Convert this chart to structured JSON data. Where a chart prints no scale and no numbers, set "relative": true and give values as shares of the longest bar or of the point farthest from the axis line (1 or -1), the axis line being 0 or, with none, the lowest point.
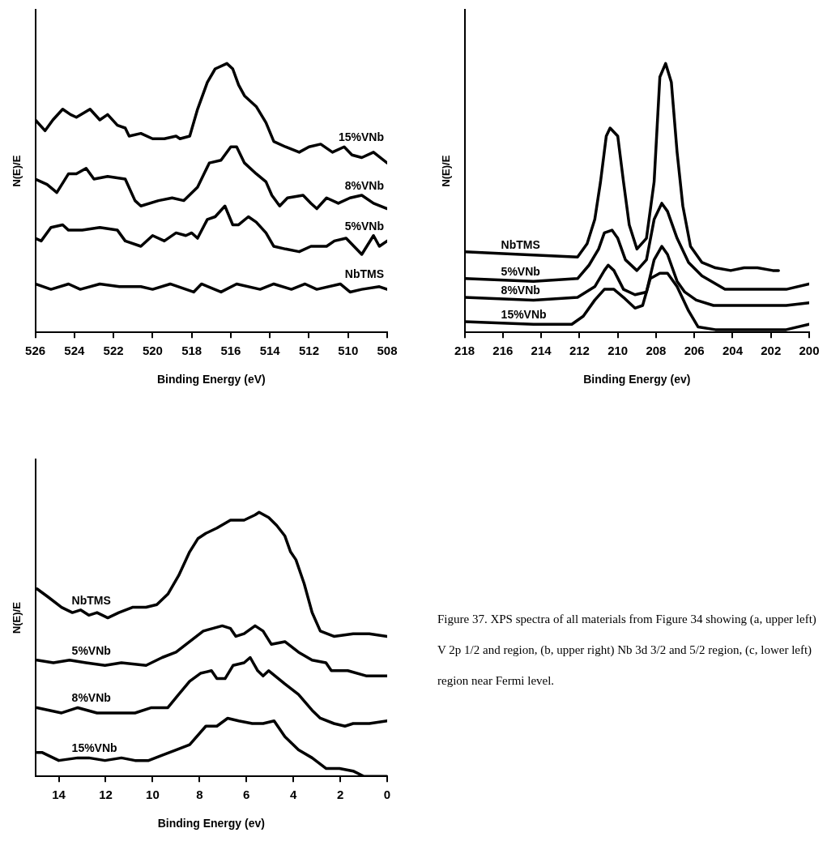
{
  "chart_data": [
    {
      "type": "line",
      "xlabel": "Binding Energy (eV)",
      "ylabel": "N(E)/E",
      "xlim": [
        526,
        508
      ],
      "xticks": [
        526,
        524,
        522,
        520,
        518,
        516,
        514,
        512,
        510,
        508
      ],
      "relative": true,
      "grid": false,
      "legend": false,
      "series": [
        {
          "name": "15%VNb",
          "color": "#000000",
          "x": [
            526.0,
            525.5,
            525.1,
            524.6,
            524.2,
            523.9,
            523.2,
            522.7,
            522.3,
            521.8,
            521.4,
            521.2,
            520.6,
            520.0,
            519.4,
            518.8,
            518.6,
            518.1,
            517.7,
            517.2,
            516.8,
            516.2,
            515.9,
            515.6,
            515.3,
            514.7,
            514.2,
            513.8,
            513.2,
            512.5,
            512.0,
            511.4,
            510.8,
            510.2,
            509.8,
            509.3,
            508.7,
            508.0
          ],
          "values": [
            0.79,
            0.75,
            0.79,
            0.83,
            0.81,
            0.8,
            0.83,
            0.79,
            0.81,
            0.77,
            0.76,
            0.73,
            0.74,
            0.72,
            0.72,
            0.73,
            0.72,
            0.73,
            0.83,
            0.93,
            0.98,
            1.0,
            0.98,
            0.92,
            0.88,
            0.84,
            0.78,
            0.71,
            0.69,
            0.67,
            0.69,
            0.7,
            0.67,
            0.69,
            0.66,
            0.65,
            0.67,
            0.63
          ]
        },
        {
          "name": "8%VNb",
          "color": "#000000",
          "x": [
            526.0,
            525.4,
            524.9,
            524.3,
            523.9,
            523.4,
            523.0,
            522.3,
            521.4,
            520.9,
            520.6,
            519.7,
            519.0,
            518.4,
            517.7,
            517.1,
            516.5,
            516.0,
            515.7,
            515.3,
            514.7,
            514.2,
            513.9,
            513.5,
            513.1,
            512.3,
            511.9,
            511.6,
            511.1,
            510.5,
            509.9,
            509.3,
            508.7,
            508.0
          ],
          "values": [
            0.57,
            0.55,
            0.52,
            0.59,
            0.59,
            0.61,
            0.57,
            0.58,
            0.57,
            0.49,
            0.47,
            0.49,
            0.5,
            0.49,
            0.54,
            0.63,
            0.64,
            0.69,
            0.69,
            0.63,
            0.59,
            0.56,
            0.51,
            0.47,
            0.5,
            0.51,
            0.48,
            0.46,
            0.5,
            0.48,
            0.5,
            0.51,
            0.48,
            0.46
          ]
        },
        {
          "name": "5%VNb",
          "color": "#000000",
          "x": [
            526.0,
            525.7,
            525.2,
            524.6,
            524.3,
            523.9,
            523.6,
            522.7,
            521.8,
            521.4,
            520.6,
            520.0,
            519.4,
            518.8,
            518.3,
            518.0,
            517.7,
            517.2,
            516.8,
            516.3,
            515.9,
            515.6,
            515.1,
            514.7,
            514.2,
            513.8,
            513.2,
            512.5,
            511.9,
            511.1,
            510.7,
            510.1,
            509.3,
            508.7,
            508.4,
            508.0
          ],
          "values": [
            0.35,
            0.34,
            0.39,
            0.4,
            0.38,
            0.38,
            0.38,
            0.39,
            0.38,
            0.34,
            0.32,
            0.36,
            0.34,
            0.37,
            0.36,
            0.37,
            0.35,
            0.42,
            0.43,
            0.47,
            0.4,
            0.4,
            0.43,
            0.41,
            0.37,
            0.32,
            0.31,
            0.3,
            0.32,
            0.32,
            0.34,
            0.35,
            0.29,
            0.36,
            0.32,
            0.34
          ]
        },
        {
          "name": "NbTMS",
          "color": "#000000",
          "x": [
            526.0,
            525.2,
            524.3,
            523.7,
            522.7,
            521.7,
            520.6,
            520.0,
            519.1,
            517.9,
            517.5,
            516.5,
            515.7,
            514.5,
            513.8,
            512.9,
            512.2,
            511.6,
            510.4,
            509.9,
            509.3,
            508.4,
            508.0
          ],
          "values": [
            0.18,
            0.16,
            0.18,
            0.16,
            0.18,
            0.17,
            0.17,
            0.16,
            0.18,
            0.15,
            0.18,
            0.15,
            0.18,
            0.16,
            0.18,
            0.16,
            0.18,
            0.16,
            0.18,
            0.15,
            0.16,
            0.17,
            0.16
          ]
        }
      ]
    },
    {
      "type": "line",
      "xlabel": "Binding Energy (ev)",
      "ylabel": "N(E)/E",
      "xlim": [
        218,
        200
      ],
      "xticks": [
        218,
        216,
        214,
        212,
        210,
        208,
        206,
        204,
        202,
        200
      ],
      "relative": true,
      "grid": false,
      "legend": false,
      "series": [
        {
          "name": "NbTMS",
          "color": "#000000",
          "x": [
            218.0,
            215.1,
            212.1,
            211.6,
            211.2,
            210.9,
            210.6,
            210.4,
            210.0,
            209.7,
            209.4,
            209.0,
            208.5,
            208.1,
            207.8,
            207.5,
            207.2,
            206.9,
            206.6,
            206.2,
            205.6,
            204.9,
            204.1,
            203.4,
            202.7,
            201.9,
            201.6
          ],
          "values": [
            0.3,
            0.29,
            0.28,
            0.33,
            0.42,
            0.56,
            0.73,
            0.76,
            0.73,
            0.56,
            0.4,
            0.31,
            0.35,
            0.56,
            0.95,
            1.0,
            0.93,
            0.67,
            0.47,
            0.32,
            0.26,
            0.24,
            0.23,
            0.24,
            0.24,
            0.23,
            0.23
          ]
        },
        {
          "name": "5%VNb",
          "color": "#000000",
          "x": [
            218.0,
            214.4,
            212.1,
            211.5,
            211.0,
            210.7,
            210.3,
            210.0,
            209.6,
            209.0,
            208.5,
            208.1,
            207.7,
            207.4,
            206.9,
            206.3,
            205.6,
            204.4,
            202.7,
            201.2,
            200.0
          ],
          "values": [
            0.2,
            0.19,
            0.2,
            0.25,
            0.31,
            0.37,
            0.38,
            0.35,
            0.27,
            0.23,
            0.27,
            0.42,
            0.48,
            0.45,
            0.35,
            0.26,
            0.21,
            0.16,
            0.16,
            0.16,
            0.18
          ]
        },
        {
          "name": "8%VNb",
          "color": "#000000",
          "x": [
            218.0,
            214.4,
            212.1,
            211.2,
            210.7,
            210.5,
            210.2,
            209.7,
            209.1,
            208.5,
            208.1,
            207.7,
            207.4,
            206.9,
            206.5,
            205.9,
            205.0,
            202.7,
            201.2,
            200.0
          ],
          "values": [
            0.13,
            0.12,
            0.13,
            0.17,
            0.23,
            0.25,
            0.23,
            0.16,
            0.14,
            0.15,
            0.27,
            0.32,
            0.29,
            0.19,
            0.15,
            0.12,
            0.1,
            0.1,
            0.1,
            0.11
          ]
        },
        {
          "name": "15%VNb",
          "color": "#000000",
          "x": [
            218.0,
            214.4,
            212.4,
            211.8,
            211.2,
            210.7,
            210.2,
            209.7,
            209.1,
            208.7,
            208.3,
            207.8,
            207.4,
            206.9,
            206.3,
            205.8,
            204.9,
            202.7,
            201.2,
            200.0
          ],
          "values": [
            0.04,
            0.03,
            0.03,
            0.06,
            0.12,
            0.16,
            0.16,
            0.13,
            0.09,
            0.1,
            0.2,
            0.22,
            0.22,
            0.17,
            0.08,
            0.02,
            0.01,
            0.01,
            0.01,
            0.03
          ]
        }
      ]
    },
    {
      "type": "line",
      "xlabel": "Binding Energy (ev)",
      "ylabel": "N(E)/E",
      "xlim": [
        15,
        0
      ],
      "xticks": [
        14,
        12,
        10,
        8,
        6,
        4,
        2,
        0
      ],
      "relative": true,
      "grid": false,
      "legend": false,
      "annotations": [
        "Figure 37. XPS spectra of all materials from Figure 34 showing (a, upper left) V 2p 1/2 and region, (b, upper right) Nb 3d 3/2 and 5/2 region, (c, lower left) region near Fermi level."
      ],
      "series": [
        {
          "name": "NbTMS",
          "color": "#000000",
          "x": [
            14.93,
            14.47,
            13.88,
            13.42,
            13.07,
            12.72,
            12.37,
            11.91,
            11.44,
            10.86,
            10.28,
            9.82,
            9.35,
            8.89,
            8.42,
            8.07,
            7.73,
            7.26,
            6.68,
            6.1,
            5.63,
            5.46,
            5.05,
            4.71,
            4.36,
            4.12,
            3.89,
            3.54,
            3.2,
            2.85,
            2.27,
            1.45,
            0.76,
            0
          ],
          "values": [
            0.71,
            0.68,
            0.64,
            0.62,
            0.63,
            0.61,
            0.62,
            0.6,
            0.62,
            0.64,
            0.64,
            0.65,
            0.69,
            0.76,
            0.85,
            0.9,
            0.92,
            0.94,
            0.97,
            0.97,
            0.99,
            1.0,
            0.98,
            0.95,
            0.91,
            0.85,
            0.82,
            0.73,
            0.62,
            0.55,
            0.53,
            0.54,
            0.54,
            0.53
          ]
        },
        {
          "name": "5%VNb",
          "color": "#000000",
          "x": [
            14.93,
            14.23,
            13.54,
            12.84,
            12.03,
            11.33,
            10.28,
            9.59,
            9.0,
            8.42,
            7.84,
            7.03,
            6.68,
            6.45,
            6.1,
            5.63,
            5.29,
            4.94,
            4.36,
            3.78,
            3.2,
            2.61,
            2.38,
            1.68,
            0.87,
            0
          ],
          "values": [
            0.44,
            0.43,
            0.44,
            0.43,
            0.42,
            0.43,
            0.42,
            0.45,
            0.47,
            0.51,
            0.55,
            0.57,
            0.56,
            0.53,
            0.54,
            0.57,
            0.55,
            0.5,
            0.51,
            0.47,
            0.44,
            0.43,
            0.4,
            0.4,
            0.38,
            0.38
          ]
        },
        {
          "name": "8%VNb",
          "color": "#000000",
          "x": [
            14.93,
            13.88,
            13.19,
            12.37,
            11.56,
            10.75,
            10.05,
            9.35,
            8.89,
            8.42,
            7.96,
            7.49,
            7.26,
            6.91,
            6.57,
            6.1,
            5.84,
            5.52,
            5.29,
            5.05,
            4.36,
            3.78,
            3.2,
            2.85,
            2.27,
            1.8,
            1.45,
            0.76,
            0
          ],
          "values": [
            0.26,
            0.24,
            0.26,
            0.24,
            0.24,
            0.24,
            0.26,
            0.26,
            0.31,
            0.36,
            0.39,
            0.4,
            0.37,
            0.37,
            0.42,
            0.43,
            0.45,
            0.4,
            0.38,
            0.4,
            0.35,
            0.31,
            0.25,
            0.22,
            0.2,
            0.19,
            0.2,
            0.2,
            0.21
          ]
        },
        {
          "name": "15%VNb",
          "color": "#000000",
          "x": [
            14.93,
            14.7,
            14.0,
            13.19,
            12.72,
            12.03,
            11.33,
            10.75,
            10.17,
            9.59,
            9.0,
            8.42,
            7.73,
            7.26,
            6.8,
            6.33,
            5.75,
            5.29,
            4.82,
            4.36,
            3.78,
            3.2,
            2.61,
            2.03,
            1.45,
            0.99,
            0
          ],
          "values": [
            0.09,
            0.09,
            0.06,
            0.07,
            0.07,
            0.06,
            0.07,
            0.06,
            0.06,
            0.08,
            0.1,
            0.12,
            0.19,
            0.19,
            0.22,
            0.21,
            0.2,
            0.2,
            0.21,
            0.15,
            0.1,
            0.07,
            0.03,
            0.03,
            0.02,
            0.0,
            0.0
          ]
        }
      ]
    }
  ]
}
